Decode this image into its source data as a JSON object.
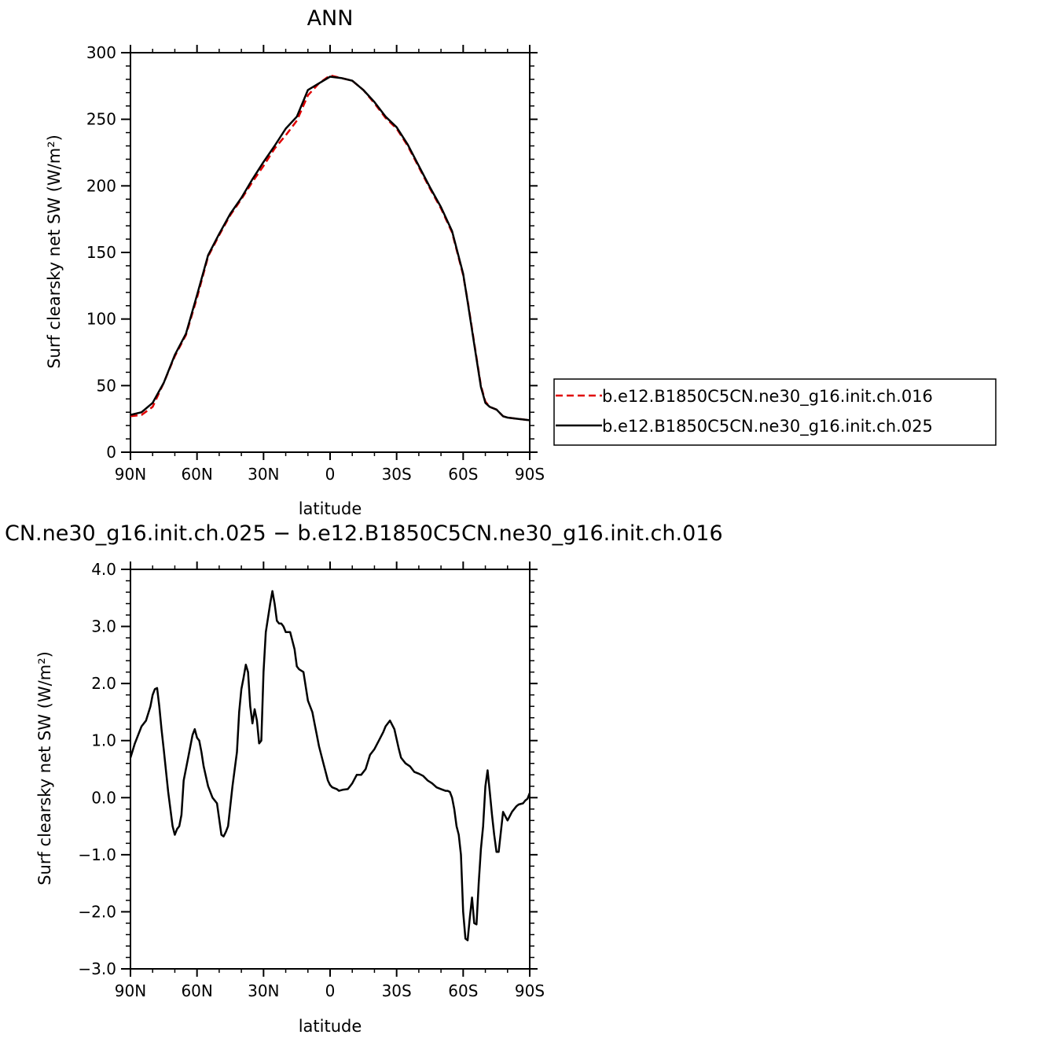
{
  "chart_data": [
    {
      "type": "line",
      "title": "ANN",
      "xlabel": "latitude",
      "ylabel": "Surf clearsky net SW (W/m²)",
      "xlim": [
        90,
        -90
      ],
      "ylim": [
        0,
        300
      ],
      "xticks": [
        {
          "value": 90,
          "label": "90N"
        },
        {
          "value": 60,
          "label": "60N"
        },
        {
          "value": 30,
          "label": "30N"
        },
        {
          "value": 0,
          "label": "0"
        },
        {
          "value": -30,
          "label": "30S"
        },
        {
          "value": -60,
          "label": "60S"
        },
        {
          "value": -90,
          "label": "90S"
        }
      ],
      "yticks": [
        {
          "value": 0,
          "label": "0"
        },
        {
          "value": 50,
          "label": "50"
        },
        {
          "value": 100,
          "label": "100"
        },
        {
          "value": 150,
          "label": "150"
        },
        {
          "value": 200,
          "label": "200"
        },
        {
          "value": 250,
          "label": "250"
        },
        {
          "value": 300,
          "label": "300"
        }
      ],
      "legend_position": "right",
      "series": [
        {
          "name": "b.e12.B1850C5CN.ne30_g16.init.ch.016",
          "color": "#e00000",
          "dash": "dashed",
          "x": [
            90,
            85,
            80,
            75,
            70,
            65,
            60,
            55,
            50,
            45,
            40,
            35,
            30,
            25,
            20,
            15,
            10,
            5,
            0,
            -5,
            -10,
            -15,
            -20,
            -25,
            -30,
            -35,
            -40,
            -45,
            -50,
            -55,
            -60,
            -62,
            -65,
            -68,
            -70,
            -72,
            -75,
            -78,
            -80,
            -85,
            -90
          ],
          "y": [
            27,
            28,
            34,
            52,
            72,
            88,
            116,
            147,
            163,
            178,
            190,
            203,
            215,
            228,
            238,
            249,
            268,
            277,
            283,
            281,
            279,
            272,
            262,
            251,
            243,
            230,
            214,
            198,
            183,
            165,
            133,
            114,
            82,
            50,
            38,
            34,
            32,
            27,
            26,
            25,
            24
          ]
        },
        {
          "name": "b.e12.B1850C5CN.ne30_g16.init.ch.025",
          "color": "#000000",
          "dash": "solid",
          "x": [
            90,
            85,
            80,
            75,
            70,
            65,
            60,
            55,
            50,
            45,
            40,
            35,
            30,
            25,
            20,
            15,
            10,
            5,
            0,
            -5,
            -10,
            -15,
            -20,
            -25,
            -30,
            -35,
            -40,
            -45,
            -50,
            -55,
            -60,
            -62,
            -65,
            -68,
            -70,
            -72,
            -75,
            -78,
            -80,
            -85,
            -90
          ],
          "y": [
            28,
            30,
            37,
            52,
            73,
            89,
            118,
            148,
            164,
            179,
            191,
            205,
            218,
            230,
            243,
            252,
            272,
            277,
            282,
            281,
            279,
            272,
            263,
            252,
            244,
            231,
            215,
            199,
            184,
            166,
            134,
            113,
            81,
            49,
            37,
            34,
            32,
            27,
            26,
            25,
            24
          ]
        }
      ]
    },
    {
      "type": "line",
      "title": "CN.ne30_g16.init.ch.025 − b.e12.B1850C5CN.ne30_g16.init.ch.016",
      "xlabel": "latitude",
      "ylabel": "Surf clearsky net SW (W/m²)",
      "xlim": [
        90,
        -90
      ],
      "ylim": [
        -3.0,
        4.0
      ],
      "xticks": [
        {
          "value": 90,
          "label": "90N"
        },
        {
          "value": 60,
          "label": "60N"
        },
        {
          "value": 30,
          "label": "30N"
        },
        {
          "value": 0,
          "label": "0"
        },
        {
          "value": -30,
          "label": "30S"
        },
        {
          "value": -60,
          "label": "60S"
        },
        {
          "value": -90,
          "label": "90S"
        }
      ],
      "yticks": [
        {
          "value": -3.0,
          "label": "−3.0"
        },
        {
          "value": -2.0,
          "label": "−2.0"
        },
        {
          "value": -1.0,
          "label": "−1.0"
        },
        {
          "value": 0.0,
          "label": "0.0"
        },
        {
          "value": 1.0,
          "label": "1.0"
        },
        {
          "value": 2.0,
          "label": "2.0"
        },
        {
          "value": 3.0,
          "label": "3.0"
        },
        {
          "value": 4.0,
          "label": "4.0"
        }
      ],
      "series": [
        {
          "color": "#000000",
          "x": [
            90,
            88,
            85,
            83,
            81,
            80,
            79,
            78,
            77,
            76,
            75,
            73,
            71,
            70,
            69,
            68,
            67,
            66,
            64,
            62,
            61,
            60,
            59,
            58,
            57,
            55,
            53,
            51,
            49,
            48,
            47,
            46,
            44,
            42,
            41,
            40,
            39,
            38,
            37,
            36,
            35,
            34,
            33,
            32,
            31,
            30,
            29,
            27,
            26,
            25,
            24,
            23,
            22,
            21,
            20,
            18,
            16,
            15,
            14,
            12,
            10,
            8,
            7,
            6,
            5,
            3,
            1,
            0,
            -1,
            -3,
            -4,
            -6,
            -8,
            -10,
            -12,
            -14,
            -16,
            -18,
            -20,
            -22,
            -24,
            -25,
            -27,
            -29,
            -31,
            -32,
            -34,
            -36,
            -38,
            -40,
            -42,
            -44,
            -46,
            -48,
            -50,
            -52,
            -53,
            -54,
            -55,
            -56,
            -57,
            -58,
            -59,
            -60,
            -61,
            -62,
            -63,
            -64,
            -65,
            -66,
            -67,
            -68,
            -69,
            -70,
            -71,
            -72,
            -73,
            -74,
            -75,
            -76,
            -77,
            -78,
            -80,
            -82,
            -84,
            -85,
            -87,
            -88,
            -89,
            -90
          ],
          "y": [
            0.7,
            0.95,
            1.25,
            1.35,
            1.6,
            1.8,
            1.9,
            1.92,
            1.6,
            1.2,
            0.85,
            0.1,
            -0.5,
            -0.65,
            -0.55,
            -0.5,
            -0.3,
            0.3,
            0.7,
            1.1,
            1.2,
            1.05,
            1.0,
            0.8,
            0.55,
            0.2,
            0.0,
            -0.1,
            -0.65,
            -0.68,
            -0.6,
            -0.5,
            0.2,
            0.8,
            1.5,
            1.9,
            2.1,
            2.33,
            2.2,
            1.6,
            1.3,
            1.55,
            1.35,
            0.95,
            1.0,
            2.2,
            2.9,
            3.4,
            3.62,
            3.4,
            3.1,
            3.05,
            3.05,
            3.0,
            2.9,
            2.9,
            2.6,
            2.3,
            2.25,
            2.2,
            1.7,
            1.5,
            1.3,
            1.1,
            0.9,
            0.6,
            0.3,
            0.22,
            0.18,
            0.15,
            0.12,
            0.14,
            0.15,
            0.25,
            0.4,
            0.4,
            0.5,
            0.75,
            0.85,
            1.0,
            1.15,
            1.25,
            1.35,
            1.2,
            0.85,
            0.7,
            0.6,
            0.55,
            0.45,
            0.42,
            0.38,
            0.3,
            0.25,
            0.18,
            0.15,
            0.12,
            0.12,
            0.1,
            0.0,
            -0.2,
            -0.5,
            -0.65,
            -1.0,
            -2.0,
            -2.47,
            -2.5,
            -2.1,
            -1.75,
            -2.2,
            -2.22,
            -1.5,
            -0.9,
            -0.5,
            0.2,
            0.48,
            0.1,
            -0.3,
            -0.65,
            -0.95,
            -0.95,
            -0.6,
            -0.25,
            -0.4,
            -0.25,
            -0.15,
            -0.12,
            -0.1,
            -0.05,
            -0.02,
            0.08
          ]
        }
      ]
    }
  ]
}
